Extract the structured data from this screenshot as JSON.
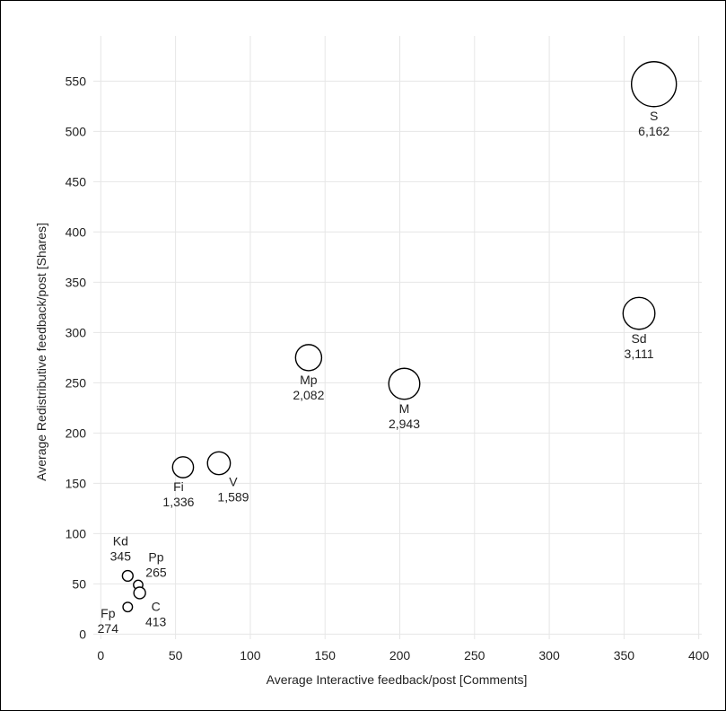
{
  "chart_data": {
    "type": "scatter",
    "variant": "bubble",
    "xlabel": "Average Interactive feedback/post [Comments]",
    "ylabel": "Average Redistributive feedback/post [Shares]",
    "xlim": [
      -5,
      402
    ],
    "ylim": [
      -5,
      595
    ],
    "xticks": [
      "0",
      "50",
      "100",
      "150",
      "200",
      "250",
      "300",
      "350",
      "400"
    ],
    "yticks": [
      "0",
      "50",
      "100",
      "150",
      "200",
      "250",
      "300",
      "350",
      "400",
      "450",
      "500",
      "550"
    ],
    "grid": true,
    "points": [
      {
        "label": "S",
        "value": "6,162",
        "size": 6162,
        "x": 370,
        "y": 547,
        "label_pos": "below"
      },
      {
        "label": "Sd",
        "value": "3,111",
        "size": 3111,
        "x": 360,
        "y": 319,
        "label_pos": "below"
      },
      {
        "label": "M",
        "value": "2,943",
        "size": 2943,
        "x": 203,
        "y": 249,
        "label_pos": "below"
      },
      {
        "label": "Mp",
        "value": "2,082",
        "size": 2082,
        "x": 139,
        "y": 275,
        "label_pos": "below"
      },
      {
        "label": "V",
        "value": "1,589",
        "size": 1589,
        "x": 79,
        "y": 170,
        "label_pos": "below-right"
      },
      {
        "label": "Fi",
        "value": "1,336",
        "size": 1336,
        "x": 55,
        "y": 166,
        "label_pos": "below-left"
      },
      {
        "label": "Kd",
        "value": "345",
        "size": 345,
        "x": 18,
        "y": 58,
        "label_pos": "above"
      },
      {
        "label": "Pp",
        "value": "265",
        "size": 265,
        "x": 25,
        "y": 49,
        "label_pos": "above-right"
      },
      {
        "label": "C",
        "value": "413",
        "size": 413,
        "x": 26,
        "y": 41,
        "label_pos": "right"
      },
      {
        "label": "Fp",
        "value": "274",
        "size": 274,
        "x": 18,
        "y": 27,
        "label_pos": "left"
      }
    ]
  }
}
